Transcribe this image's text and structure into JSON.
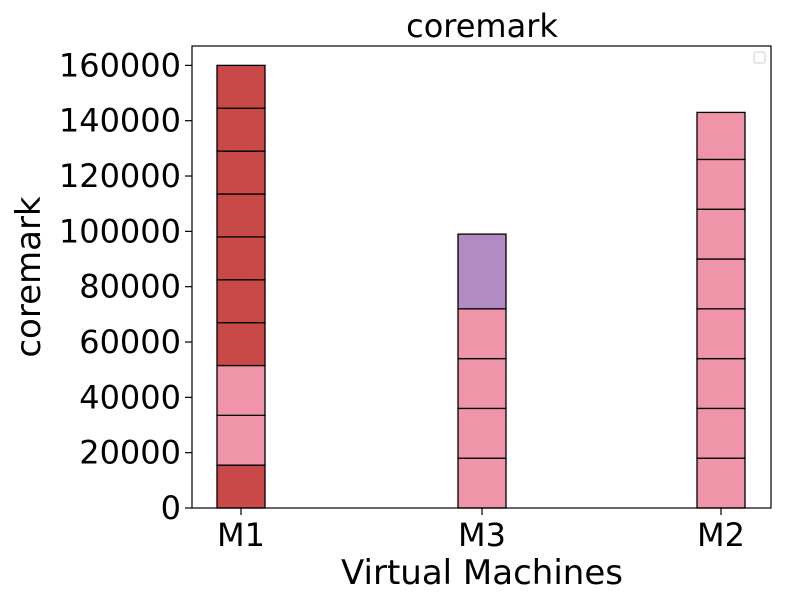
{
  "chart_data": {
    "type": "bar",
    "stacked": true,
    "title": "coremark",
    "xlabel": "Virtual Machines",
    "ylabel": "coremark",
    "categories": [
      "M1",
      "M3",
      "M2"
    ],
    "ylim": [
      0,
      167000
    ],
    "yticks": [
      0,
      20000,
      40000,
      60000,
      80000,
      100000,
      120000,
      140000,
      160000
    ],
    "ytick_labels": [
      "0",
      "20000",
      "40000",
      "60000",
      "80000",
      "100000",
      "120000",
      "140000",
      "160000"
    ],
    "grid": false,
    "legend": {
      "placement": "top-right",
      "entries": []
    },
    "colors": {
      "red": "#c94848",
      "pink": "#f095a9",
      "purple": "#b18bc1"
    },
    "stacks": [
      {
        "category": "M1",
        "segments": [
          {
            "value": 15500,
            "color": "red"
          },
          {
            "value": 18000,
            "color": "pink"
          },
          {
            "value": 18000,
            "color": "pink"
          },
          {
            "value": 15500,
            "color": "red"
          },
          {
            "value": 15500,
            "color": "red"
          },
          {
            "value": 15500,
            "color": "red"
          },
          {
            "value": 15500,
            "color": "red"
          },
          {
            "value": 15500,
            "color": "red"
          },
          {
            "value": 15500,
            "color": "red"
          },
          {
            "value": 15500,
            "color": "red"
          }
        ]
      },
      {
        "category": "M3",
        "segments": [
          {
            "value": 18000,
            "color": "pink"
          },
          {
            "value": 18000,
            "color": "pink"
          },
          {
            "value": 18000,
            "color": "pink"
          },
          {
            "value": 18000,
            "color": "pink"
          },
          {
            "value": 27000,
            "color": "purple"
          }
        ]
      },
      {
        "category": "M2",
        "segments": [
          {
            "value": 18000,
            "color": "pink"
          },
          {
            "value": 18000,
            "color": "pink"
          },
          {
            "value": 18000,
            "color": "pink"
          },
          {
            "value": 18000,
            "color": "pink"
          },
          {
            "value": 18000,
            "color": "pink"
          },
          {
            "value": 18000,
            "color": "pink"
          },
          {
            "value": 18000,
            "color": "pink"
          },
          {
            "value": 17000,
            "color": "pink"
          }
        ]
      }
    ]
  }
}
